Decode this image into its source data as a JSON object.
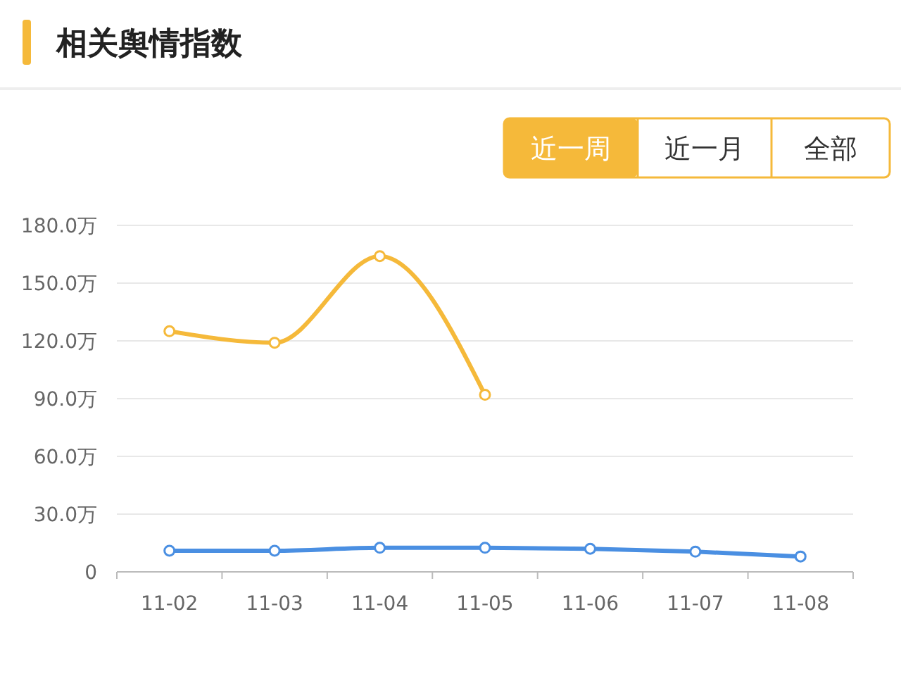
{
  "chart_data": {
    "type": "line",
    "title": "相关舆情指数",
    "categories": [
      "11-02",
      "11-03",
      "11-04",
      "11-05",
      "11-06",
      "11-07",
      "11-08"
    ],
    "series": [
      {
        "color": "#f5b93a",
        "values": [
          125,
          119,
          164,
          92,
          null,
          null,
          null
        ]
      },
      {
        "color": "#4a8fe2",
        "values": [
          11,
          11,
          12.5,
          12.5,
          12,
          10.5,
          8
        ]
      }
    ],
    "ylim": [
      0,
      180
    ],
    "yticks": [
      {
        "value": 0,
        "label": "0"
      },
      {
        "value": 30,
        "label": "30.0万"
      },
      {
        "value": 60,
        "label": "60.0万"
      },
      {
        "value": 90,
        "label": "90.0万"
      },
      {
        "value": 120,
        "label": "120.0万"
      },
      {
        "value": 150,
        "label": "150.0万"
      },
      {
        "value": 180,
        "label": "180.0万"
      }
    ],
    "grid": "y",
    "marker": "circle",
    "line_style": "solid",
    "legend": false,
    "annotations": [
      "近一周",
      "近一月",
      "全部"
    ]
  }
}
